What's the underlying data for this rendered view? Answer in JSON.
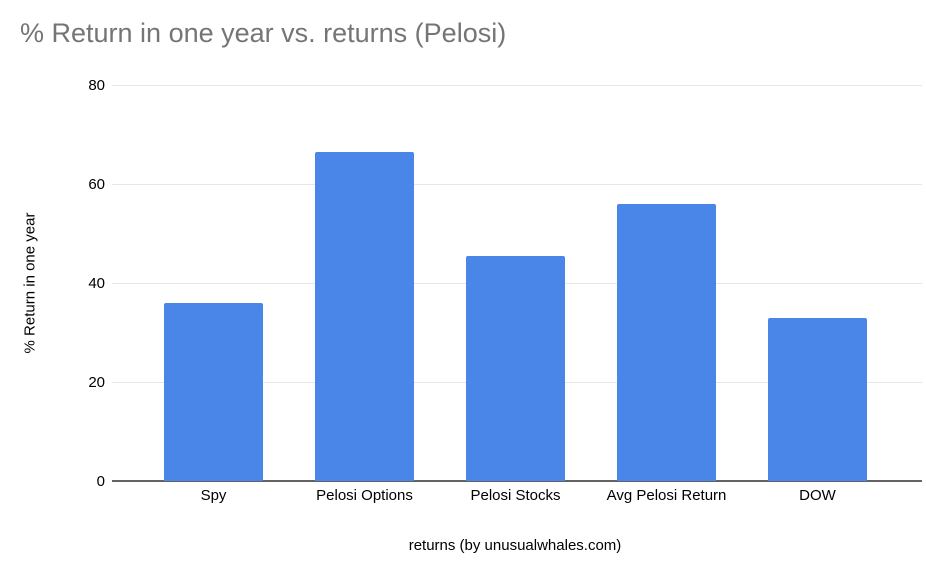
{
  "title": "% Return in one year vs. returns (Pelosi)",
  "colors": {
    "bar": "#4a86e8",
    "title_text": "#757575",
    "gridline": "#e6e6e6",
    "baseline": "#636363",
    "axis_text": "#000000",
    "background": "#ffffff"
  },
  "chart_data": {
    "type": "bar",
    "title": "% Return in one year vs. returns (Pelosi)",
    "categories": [
      "Spy",
      "Pelosi Options",
      "Pelosi Stocks",
      "Avg Pelosi Return",
      "DOW"
    ],
    "values": [
      35.9,
      66.4,
      45.5,
      55.9,
      32.9
    ],
    "xlabel": "returns (by unusualwhales.com)",
    "ylabel": "% Return in one year",
    "ylim": [
      0,
      80
    ],
    "yticks": [
      0,
      20,
      40,
      60,
      80
    ],
    "grid": true,
    "legend": "none",
    "bar_color": "#4a86e8"
  }
}
